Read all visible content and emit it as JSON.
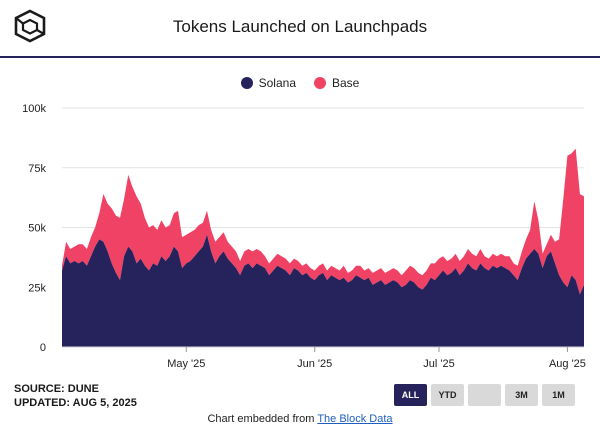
{
  "header": {
    "title": "Tokens Launched on Launchpads"
  },
  "logo": {
    "icon": "cube-logo-icon"
  },
  "footer": {
    "source": "SOURCE: DUNE",
    "updated": "UPDATED: AUG 5, 2025",
    "embed_prefix": "Chart embedded from ",
    "embed_link": "The Block Data"
  },
  "controls": [
    {
      "label": "ALL",
      "active": true
    },
    {
      "label": "YTD",
      "active": false
    },
    {
      "label": "",
      "active": false
    },
    {
      "label": "3M",
      "active": false
    },
    {
      "label": "1M",
      "active": false
    }
  ],
  "chart_data": {
    "type": "area",
    "stacked": true,
    "title": "Tokens Launched on Launchpads",
    "xlabel": "",
    "ylabel": "",
    "ylim": [
      0,
      100000
    ],
    "y_ticks": [
      0,
      25000,
      50000,
      75000,
      100000
    ],
    "y_tick_labels": [
      "0",
      "25k",
      "50k",
      "75k",
      "100k"
    ],
    "x_tick_labels": [
      {
        "label": "May '25",
        "date": "2025-05-01"
      },
      {
        "label": "Jun '25",
        "date": "2025-06-01"
      },
      {
        "label": "Jul '25",
        "date": "2025-07-01"
      },
      {
        "label": "Aug '25",
        "date": "2025-08-01"
      }
    ],
    "xlim": [
      "2025-04-01",
      "2025-08-05"
    ],
    "grid": true,
    "legend": "top-center",
    "series": [
      {
        "name": "Solana",
        "color": "#26225c",
        "points": [
          [
            "2025-04-01",
            32000
          ],
          [
            "2025-04-02",
            38000
          ],
          [
            "2025-04-03",
            35000
          ],
          [
            "2025-04-04",
            36000
          ],
          [
            "2025-04-05",
            35000
          ],
          [
            "2025-04-06",
            36000
          ],
          [
            "2025-04-07",
            34000
          ],
          [
            "2025-04-08",
            38000
          ],
          [
            "2025-04-09",
            42000
          ],
          [
            "2025-04-10",
            45000
          ],
          [
            "2025-04-11",
            44000
          ],
          [
            "2025-04-12",
            40000
          ],
          [
            "2025-04-13",
            35000
          ],
          [
            "2025-04-14",
            31000
          ],
          [
            "2025-04-15",
            28000
          ],
          [
            "2025-04-16",
            38000
          ],
          [
            "2025-04-17",
            42000
          ],
          [
            "2025-04-18",
            40000
          ],
          [
            "2025-04-19",
            35000
          ],
          [
            "2025-04-20",
            37000
          ],
          [
            "2025-04-21",
            34000
          ],
          [
            "2025-04-22",
            32000
          ],
          [
            "2025-04-23",
            35000
          ],
          [
            "2025-04-24",
            34000
          ],
          [
            "2025-04-25",
            38000
          ],
          [
            "2025-04-26",
            36000
          ],
          [
            "2025-04-27",
            38000
          ],
          [
            "2025-04-28",
            42000
          ],
          [
            "2025-04-29",
            40000
          ],
          [
            "2025-04-30",
            33000
          ],
          [
            "2025-05-01",
            35000
          ],
          [
            "2025-05-02",
            36000
          ],
          [
            "2025-05-03",
            38000
          ],
          [
            "2025-05-04",
            40000
          ],
          [
            "2025-05-05",
            42000
          ],
          [
            "2025-05-06",
            47000
          ],
          [
            "2025-05-07",
            40000
          ],
          [
            "2025-05-08",
            35000
          ],
          [
            "2025-05-09",
            38000
          ],
          [
            "2025-05-10",
            40000
          ],
          [
            "2025-05-11",
            37000
          ],
          [
            "2025-05-12",
            35000
          ],
          [
            "2025-05-13",
            33000
          ],
          [
            "2025-05-14",
            30000
          ],
          [
            "2025-05-15",
            34000
          ],
          [
            "2025-05-16",
            35000
          ],
          [
            "2025-05-17",
            33000
          ],
          [
            "2025-05-18",
            35000
          ],
          [
            "2025-05-19",
            34000
          ],
          [
            "2025-05-20",
            33000
          ],
          [
            "2025-05-21",
            30000
          ],
          [
            "2025-05-22",
            32000
          ],
          [
            "2025-05-23",
            34000
          ],
          [
            "2025-05-24",
            33000
          ],
          [
            "2025-05-25",
            32000
          ],
          [
            "2025-05-26",
            30000
          ],
          [
            "2025-05-27",
            33000
          ],
          [
            "2025-05-28",
            32000
          ],
          [
            "2025-05-29",
            30000
          ],
          [
            "2025-05-30",
            31000
          ],
          [
            "2025-05-31",
            29000
          ],
          [
            "2025-06-01",
            28000
          ],
          [
            "2025-06-02",
            30000
          ],
          [
            "2025-06-03",
            31000
          ],
          [
            "2025-06-04",
            28000
          ],
          [
            "2025-06-05",
            30000
          ],
          [
            "2025-06-06",
            29000
          ],
          [
            "2025-06-07",
            28000
          ],
          [
            "2025-06-08",
            29000
          ],
          [
            "2025-06-09",
            27000
          ],
          [
            "2025-06-10",
            28000
          ],
          [
            "2025-06-11",
            30000
          ],
          [
            "2025-06-12",
            29000
          ],
          [
            "2025-06-13",
            28000
          ],
          [
            "2025-06-14",
            29000
          ],
          [
            "2025-06-15",
            26000
          ],
          [
            "2025-06-16",
            27000
          ],
          [
            "2025-06-17",
            28000
          ],
          [
            "2025-06-18",
            26000
          ],
          [
            "2025-06-19",
            27000
          ],
          [
            "2025-06-20",
            28000
          ],
          [
            "2025-06-21",
            27000
          ],
          [
            "2025-06-22",
            25000
          ],
          [
            "2025-06-23",
            26000
          ],
          [
            "2025-06-24",
            28000
          ],
          [
            "2025-06-25",
            27000
          ],
          [
            "2025-06-26",
            25000
          ],
          [
            "2025-06-27",
            24000
          ],
          [
            "2025-06-28",
            26000
          ],
          [
            "2025-06-29",
            29000
          ],
          [
            "2025-06-30",
            28000
          ],
          [
            "2025-07-01",
            30000
          ],
          [
            "2025-07-02",
            32000
          ],
          [
            "2025-07-03",
            30000
          ],
          [
            "2025-07-04",
            31000
          ],
          [
            "2025-07-05",
            33000
          ],
          [
            "2025-07-06",
            30000
          ],
          [
            "2025-07-07",
            32000
          ],
          [
            "2025-07-08",
            35000
          ],
          [
            "2025-07-09",
            33000
          ],
          [
            "2025-07-10",
            32000
          ],
          [
            "2025-07-11",
            35000
          ],
          [
            "2025-07-12",
            33000
          ],
          [
            "2025-07-13",
            32000
          ],
          [
            "2025-07-14",
            34000
          ],
          [
            "2025-07-15",
            33000
          ],
          [
            "2025-07-16",
            34000
          ],
          [
            "2025-07-17",
            33000
          ],
          [
            "2025-07-18",
            32000
          ],
          [
            "2025-07-19",
            30000
          ],
          [
            "2025-07-20",
            28000
          ],
          [
            "2025-07-21",
            33000
          ],
          [
            "2025-07-22",
            37000
          ],
          [
            "2025-07-23",
            39000
          ],
          [
            "2025-07-24",
            41000
          ],
          [
            "2025-07-25",
            39000
          ],
          [
            "2025-07-26",
            33000
          ],
          [
            "2025-07-27",
            38000
          ],
          [
            "2025-07-28",
            40000
          ],
          [
            "2025-07-29",
            35000
          ],
          [
            "2025-07-30",
            30000
          ],
          [
            "2025-07-31",
            27000
          ],
          [
            "2025-08-01",
            25000
          ],
          [
            "2025-08-02",
            30000
          ],
          [
            "2025-08-03",
            28000
          ],
          [
            "2025-08-04",
            22000
          ],
          [
            "2025-08-05",
            26000
          ]
        ]
      },
      {
        "name": "Base",
        "color": "#f04265",
        "points": [
          [
            "2025-04-01",
            2000
          ],
          [
            "2025-04-02",
            6000
          ],
          [
            "2025-04-03",
            6000
          ],
          [
            "2025-04-04",
            6000
          ],
          [
            "2025-04-05",
            8000
          ],
          [
            "2025-04-06",
            7000
          ],
          [
            "2025-04-07",
            7000
          ],
          [
            "2025-04-08",
            8000
          ],
          [
            "2025-04-09",
            8000
          ],
          [
            "2025-04-10",
            11000
          ],
          [
            "2025-04-11",
            20000
          ],
          [
            "2025-04-12",
            20000
          ],
          [
            "2025-04-13",
            23000
          ],
          [
            "2025-04-14",
            24000
          ],
          [
            "2025-04-15",
            26000
          ],
          [
            "2025-04-16",
            24000
          ],
          [
            "2025-04-17",
            30000
          ],
          [
            "2025-04-18",
            27000
          ],
          [
            "2025-04-19",
            28000
          ],
          [
            "2025-04-20",
            23000
          ],
          [
            "2025-04-21",
            20000
          ],
          [
            "2025-04-22",
            18000
          ],
          [
            "2025-04-23",
            16000
          ],
          [
            "2025-04-24",
            15000
          ],
          [
            "2025-04-25",
            15000
          ],
          [
            "2025-04-26",
            14000
          ],
          [
            "2025-04-27",
            13000
          ],
          [
            "2025-04-28",
            14000
          ],
          [
            "2025-04-29",
            17000
          ],
          [
            "2025-04-30",
            13000
          ],
          [
            "2025-05-01",
            12000
          ],
          [
            "2025-05-02",
            12000
          ],
          [
            "2025-05-03",
            11000
          ],
          [
            "2025-05-04",
            11000
          ],
          [
            "2025-05-05",
            10000
          ],
          [
            "2025-05-06",
            10000
          ],
          [
            "2025-05-07",
            9000
          ],
          [
            "2025-05-08",
            9000
          ],
          [
            "2025-05-09",
            8000
          ],
          [
            "2025-05-10",
            8000
          ],
          [
            "2025-05-11",
            7000
          ],
          [
            "2025-05-12",
            7000
          ],
          [
            "2025-05-13",
            7000
          ],
          [
            "2025-05-14",
            6000
          ],
          [
            "2025-05-15",
            6000
          ],
          [
            "2025-05-16",
            6000
          ],
          [
            "2025-05-17",
            7000
          ],
          [
            "2025-05-18",
            6000
          ],
          [
            "2025-05-19",
            6000
          ],
          [
            "2025-05-20",
            5000
          ],
          [
            "2025-05-21",
            5000
          ],
          [
            "2025-05-22",
            5000
          ],
          [
            "2025-05-23",
            5000
          ],
          [
            "2025-05-24",
            5000
          ],
          [
            "2025-05-25",
            5000
          ],
          [
            "2025-05-26",
            5000
          ],
          [
            "2025-05-27",
            4000
          ],
          [
            "2025-05-28",
            4000
          ],
          [
            "2025-05-29",
            4000
          ],
          [
            "2025-05-30",
            4000
          ],
          [
            "2025-05-31",
            4000
          ],
          [
            "2025-06-01",
            4000
          ],
          [
            "2025-06-02",
            4000
          ],
          [
            "2025-06-03",
            4000
          ],
          [
            "2025-06-04",
            4000
          ],
          [
            "2025-06-05",
            4000
          ],
          [
            "2025-06-06",
            4000
          ],
          [
            "2025-06-07",
            4000
          ],
          [
            "2025-06-08",
            5000
          ],
          [
            "2025-06-09",
            4000
          ],
          [
            "2025-06-10",
            4000
          ],
          [
            "2025-06-11",
            4000
          ],
          [
            "2025-06-12",
            5000
          ],
          [
            "2025-06-13",
            4000
          ],
          [
            "2025-06-14",
            4000
          ],
          [
            "2025-06-15",
            5000
          ],
          [
            "2025-06-16",
            5000
          ],
          [
            "2025-06-17",
            5000
          ],
          [
            "2025-06-18",
            5000
          ],
          [
            "2025-06-19",
            5000
          ],
          [
            "2025-06-20",
            5000
          ],
          [
            "2025-06-21",
            5000
          ],
          [
            "2025-06-22",
            5000
          ],
          [
            "2025-06-23",
            6000
          ],
          [
            "2025-06-24",
            6000
          ],
          [
            "2025-06-25",
            6000
          ],
          [
            "2025-06-26",
            6000
          ],
          [
            "2025-06-27",
            6000
          ],
          [
            "2025-06-28",
            6000
          ],
          [
            "2025-06-29",
            6000
          ],
          [
            "2025-06-30",
            7000
          ],
          [
            "2025-07-01",
            7000
          ],
          [
            "2025-07-02",
            6000
          ],
          [
            "2025-07-03",
            6000
          ],
          [
            "2025-07-04",
            6000
          ],
          [
            "2025-07-05",
            6000
          ],
          [
            "2025-07-06",
            6000
          ],
          [
            "2025-07-07",
            6000
          ],
          [
            "2025-07-08",
            6000
          ],
          [
            "2025-07-09",
            6000
          ],
          [
            "2025-07-10",
            6000
          ],
          [
            "2025-07-11",
            6000
          ],
          [
            "2025-07-12",
            5000
          ],
          [
            "2025-07-13",
            5000
          ],
          [
            "2025-07-14",
            5000
          ],
          [
            "2025-07-15",
            5000
          ],
          [
            "2025-07-16",
            5000
          ],
          [
            "2025-07-17",
            5000
          ],
          [
            "2025-07-18",
            6000
          ],
          [
            "2025-07-19",
            5000
          ],
          [
            "2025-07-20",
            6000
          ],
          [
            "2025-07-21",
            7000
          ],
          [
            "2025-07-22",
            8000
          ],
          [
            "2025-07-23",
            10000
          ],
          [
            "2025-07-24",
            20000
          ],
          [
            "2025-07-25",
            14000
          ],
          [
            "2025-07-26",
            6000
          ],
          [
            "2025-07-27",
            5000
          ],
          [
            "2025-07-28",
            7000
          ],
          [
            "2025-07-29",
            9000
          ],
          [
            "2025-07-30",
            15000
          ],
          [
            "2025-07-31",
            35000
          ],
          [
            "2025-08-01",
            55000
          ],
          [
            "2025-08-02",
            51000
          ],
          [
            "2025-08-03",
            55000
          ],
          [
            "2025-08-04",
            42000
          ],
          [
            "2025-08-05",
            37000
          ]
        ]
      }
    ]
  }
}
